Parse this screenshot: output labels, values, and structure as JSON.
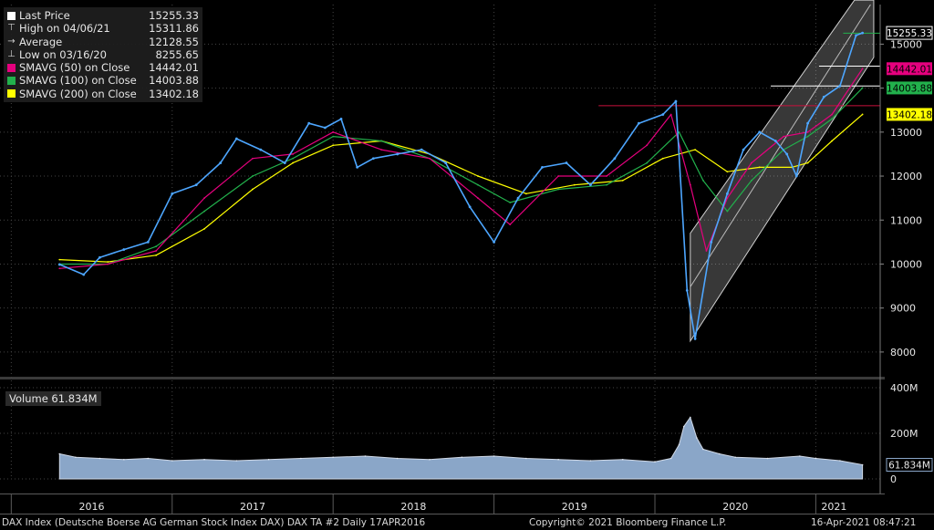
{
  "legend": {
    "items": [
      {
        "label": "Last Price",
        "value": "15255.33",
        "color": "#ffffff",
        "glyph": "box"
      },
      {
        "label": "High on 04/06/21",
        "value": "15311.86",
        "color": "#cccccc",
        "glyph": "high"
      },
      {
        "label": "Average",
        "value": "12128.55",
        "color": "#cccccc",
        "glyph": "avg"
      },
      {
        "label": "Low on 03/16/20",
        "value": "8255.65",
        "color": "#cccccc",
        "glyph": "low"
      },
      {
        "label": "SMAVG (50)  on Close",
        "value": "14442.01",
        "color": "#e6007e",
        "glyph": "box"
      },
      {
        "label": "SMAVG (100)  on Close",
        "value": "14003.88",
        "color": "#22b14c",
        "glyph": "box"
      },
      {
        "label": "SMAVG (200)  on Close",
        "value": "13402.18",
        "color": "#ffff00",
        "glyph": "box"
      }
    ]
  },
  "volume_legend": "Volume 61.834M",
  "footer": {
    "left": "DAX Index (Deutsche Boerse AG German Stock Index DAX) DAX TA #2  Daily 17APR2016",
    "center": "Copyright© 2021 Bloomberg Finance L.P.",
    "right": "16-Apr-2021 08:47:21"
  },
  "chart_data": [
    {
      "type": "line",
      "x_ticks": [
        "2016",
        "2017",
        "2018",
        "2019",
        "2020",
        "2021"
      ],
      "y_ticks": [
        8000,
        9000,
        10000,
        11000,
        12000,
        13000,
        14000,
        15000
      ],
      "ylim": [
        7500,
        15900
      ],
      "price_tags": [
        {
          "value": "15255.33",
          "color": "#ffffff"
        },
        {
          "value": "14442.01",
          "color": "#e6007e"
        },
        {
          "value": "14003.88",
          "color": "#22b14c"
        },
        {
          "value": "13402.18",
          "color": "#ffff00"
        }
      ],
      "series": [
        {
          "name": "Last Price",
          "color": "#4da6ff",
          "x": [
            2016.3,
            2016.45,
            2016.55,
            2016.7,
            2016.85,
            2017.0,
            2017.15,
            2017.3,
            2017.4,
            2017.55,
            2017.7,
            2017.85,
            2017.95,
            2018.05,
            2018.15,
            2018.25,
            2018.4,
            2018.55,
            2018.7,
            2018.85,
            2019.0,
            2019.15,
            2019.3,
            2019.45,
            2019.6,
            2019.75,
            2019.9,
            2020.05,
            2020.13,
            2020.2,
            2020.25,
            2020.35,
            2020.45,
            2020.55,
            2020.65,
            2020.75,
            2020.82,
            2020.88,
            2020.95,
            2021.05,
            2021.15,
            2021.25,
            2021.29
          ],
          "y": [
            9990,
            9760,
            10150,
            10330,
            10500,
            11600,
            11800,
            12300,
            12850,
            12600,
            12300,
            13200,
            13100,
            13300,
            12200,
            12400,
            12500,
            12600,
            12300,
            11300,
            10500,
            11500,
            12200,
            12300,
            11800,
            12400,
            13200,
            13400,
            13700,
            9400,
            8300,
            10500,
            11600,
            12600,
            13000,
            12800,
            12500,
            12000,
            13200,
            13800,
            14050,
            15200,
            15255
          ]
        },
        {
          "name": "SMAVG (50)  on Close",
          "color": "#e6007e",
          "x": [
            2016.3,
            2016.6,
            2016.9,
            2017.2,
            2017.5,
            2017.75,
            2018.0,
            2018.3,
            2018.6,
            2018.9,
            2019.1,
            2019.4,
            2019.7,
            2019.95,
            2020.1,
            2020.22,
            2020.32,
            2020.45,
            2020.6,
            2020.8,
            2020.95,
            2021.1,
            2021.29
          ],
          "y": [
            9900,
            10000,
            10300,
            11500,
            12400,
            12500,
            13000,
            12600,
            12400,
            11500,
            10900,
            12000,
            12000,
            12700,
            13400,
            11800,
            10300,
            11500,
            12300,
            12900,
            13000,
            13400,
            14442
          ]
        },
        {
          "name": "SMAVG (100)  on Close",
          "color": "#22b14c",
          "x": [
            2016.3,
            2016.6,
            2016.9,
            2017.2,
            2017.5,
            2017.75,
            2018.0,
            2018.3,
            2018.6,
            2018.9,
            2019.1,
            2019.4,
            2019.7,
            2019.95,
            2020.15,
            2020.3,
            2020.45,
            2020.6,
            2020.8,
            2020.95,
            2021.1,
            2021.29
          ],
          "y": [
            10000,
            10000,
            10400,
            11200,
            12000,
            12400,
            12900,
            12800,
            12400,
            11800,
            11400,
            11700,
            11800,
            12300,
            13000,
            11900,
            11200,
            11900,
            12600,
            12900,
            13300,
            14004
          ]
        },
        {
          "name": "SMAVG (200)  on Close",
          "color": "#ffff00",
          "x": [
            2016.3,
            2016.6,
            2016.9,
            2017.2,
            2017.5,
            2017.75,
            2018.0,
            2018.3,
            2018.6,
            2018.9,
            2019.2,
            2019.5,
            2019.8,
            2020.05,
            2020.25,
            2020.45,
            2020.65,
            2020.85,
            2020.95,
            2021.1,
            2021.29
          ],
          "y": [
            10100,
            10050,
            10200,
            10800,
            11700,
            12300,
            12700,
            12800,
            12500,
            12000,
            11600,
            11800,
            11900,
            12400,
            12600,
            12100,
            12200,
            12200,
            12300,
            12800,
            13402
          ]
        }
      ]
    },
    {
      "type": "area",
      "y_ticks": [
        "0",
        "200M",
        "400M"
      ],
      "ylim": [
        0,
        420
      ],
      "last_value_tag": "61.834M",
      "series": [
        {
          "name": "Volume",
          "color": "#8aa6c8",
          "x": [
            2016.3,
            2016.4,
            2016.55,
            2016.7,
            2016.85,
            2017.0,
            2017.2,
            2017.4,
            2017.6,
            2017.8,
            2018.0,
            2018.2,
            2018.4,
            2018.6,
            2018.8,
            2019.0,
            2019.2,
            2019.4,
            2019.6,
            2019.8,
            2020.0,
            2020.1,
            2020.15,
            2020.18,
            2020.22,
            2020.26,
            2020.3,
            2020.4,
            2020.5,
            2020.7,
            2020.9,
            2021.0,
            2021.15,
            2021.29
          ],
          "y": [
            110,
            95,
            90,
            85,
            90,
            80,
            85,
            80,
            85,
            90,
            95,
            100,
            90,
            85,
            95,
            100,
            90,
            85,
            80,
            85,
            75,
            90,
            150,
            230,
            270,
            180,
            130,
            110,
            95,
            90,
            100,
            90,
            80,
            62
          ]
        }
      ]
    }
  ]
}
